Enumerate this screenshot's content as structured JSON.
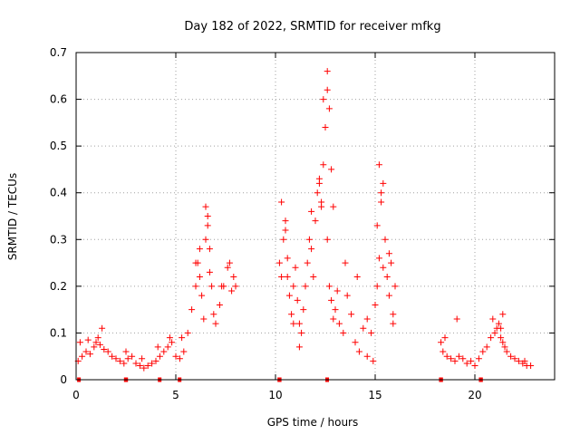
{
  "chart_data": {
    "type": "scatter",
    "title": "Day 182 of 2022, SRMTID for receiver mfkg",
    "xlabel": "GPS time / hours",
    "ylabel": "SRMTID / TECUs",
    "xlim": [
      0,
      24
    ],
    "ylim": [
      0,
      0.7
    ],
    "xticks": [
      0,
      5,
      10,
      15,
      20
    ],
    "xtick_labels": [
      "0",
      "5",
      "10",
      "15",
      "20"
    ],
    "yticks": [
      0,
      0.1,
      0.2,
      0.3,
      0.4,
      0.5,
      0.6,
      0.7
    ],
    "ytick_labels": [
      "0",
      "0.1",
      "0.2",
      "0.3",
      "0.4",
      "0.5",
      "0.6",
      "0.7"
    ],
    "grid": true,
    "marker": "+",
    "color": "#ff0000",
    "series": [
      {
        "name": "SRMTID",
        "x": [
          0.1,
          0.3,
          0.5,
          0.7,
          0.9,
          1.0,
          1.1,
          1.2,
          1.4,
          1.6,
          1.8,
          2.0,
          2.2,
          2.4,
          2.6,
          2.8,
          3.0,
          3.2,
          3.4,
          3.6,
          3.8,
          4.0,
          4.2,
          4.4,
          4.6,
          4.8,
          5.0,
          5.2,
          5.4,
          5.6,
          5.8,
          6.0,
          6.1,
          6.2,
          6.3,
          6.4,
          6.5,
          6.6,
          6.7,
          6.8,
          6.9,
          7.0,
          7.2,
          7.4,
          7.6,
          7.8,
          8.0,
          10.2,
          10.3,
          10.4,
          10.5,
          10.6,
          10.7,
          10.8,
          10.9,
          11.0,
          11.1,
          11.2,
          11.3,
          11.4,
          11.5,
          11.6,
          11.7,
          11.8,
          11.9,
          12.0,
          12.1,
          12.2,
          12.3,
          12.4,
          12.5,
          12.6,
          12.7,
          12.8,
          12.9,
          13.0,
          13.1,
          13.2,
          13.4,
          13.6,
          13.8,
          14.0,
          14.2,
          14.4,
          14.6,
          14.8,
          15.0,
          15.1,
          15.2,
          15.3,
          15.4,
          15.5,
          15.6,
          15.7,
          15.8,
          15.9,
          16.0,
          18.3,
          18.4,
          18.6,
          18.8,
          19.0,
          19.2,
          19.4,
          19.6,
          19.8,
          20.0,
          20.2,
          20.4,
          20.6,
          20.8,
          21.0,
          21.1,
          21.2,
          21.3,
          21.4,
          21.5,
          21.6,
          21.8,
          22.0,
          22.2,
          22.4,
          22.6,
          22.8,
          0.2,
          0.6,
          1.3,
          2.5,
          3.3,
          4.1,
          4.7,
          5.3,
          6.0,
          6.2,
          6.5,
          6.6,
          6.7,
          7.3,
          7.7,
          7.9,
          10.3,
          10.5,
          10.6,
          10.9,
          11.2,
          11.8,
          12.2,
          12.3,
          12.4,
          12.6,
          12.6,
          12.7,
          12.8,
          12.9,
          13.5,
          14.1,
          14.6,
          14.9,
          15.1,
          15.2,
          15.3,
          15.4,
          15.7,
          15.9,
          18.5,
          19.1,
          20.9,
          21.3,
          21.4,
          22.5
        ],
        "y": [
          0.04,
          0.05,
          0.06,
          0.055,
          0.07,
          0.08,
          0.09,
          0.075,
          0.065,
          0.06,
          0.05,
          0.045,
          0.04,
          0.035,
          0.045,
          0.05,
          0.035,
          0.03,
          0.025,
          0.03,
          0.035,
          0.04,
          0.05,
          0.06,
          0.07,
          0.08,
          0.05,
          0.045,
          0.06,
          0.1,
          0.15,
          0.2,
          0.25,
          0.22,
          0.18,
          0.13,
          0.3,
          0.35,
          0.28,
          0.2,
          0.14,
          0.12,
          0.16,
          0.2,
          0.24,
          0.19,
          0.2,
          0.25,
          0.22,
          0.3,
          0.34,
          0.26,
          0.18,
          0.14,
          0.2,
          0.24,
          0.17,
          0.12,
          0.1,
          0.15,
          0.2,
          0.25,
          0.3,
          0.28,
          0.22,
          0.34,
          0.4,
          0.43,
          0.38,
          0.46,
          0.54,
          0.3,
          0.2,
          0.17,
          0.13,
          0.15,
          0.19,
          0.12,
          0.1,
          0.18,
          0.14,
          0.08,
          0.06,
          0.11,
          0.13,
          0.1,
          0.16,
          0.2,
          0.26,
          0.38,
          0.42,
          0.3,
          0.22,
          0.18,
          0.25,
          0.14,
          0.2,
          0.08,
          0.06,
          0.05,
          0.045,
          0.04,
          0.05,
          0.045,
          0.035,
          0.04,
          0.03,
          0.045,
          0.06,
          0.07,
          0.09,
          0.1,
          0.11,
          0.12,
          0.09,
          0.08,
          0.07,
          0.06,
          0.05,
          0.045,
          0.04,
          0.035,
          0.03,
          0.03,
          0.08,
          0.085,
          0.11,
          0.06,
          0.045,
          0.07,
          0.09,
          0.09,
          0.25,
          0.28,
          0.37,
          0.33,
          0.23,
          0.2,
          0.25,
          0.22,
          0.38,
          0.32,
          0.22,
          0.12,
          0.07,
          0.36,
          0.42,
          0.37,
          0.6,
          0.66,
          0.62,
          0.58,
          0.45,
          0.37,
          0.25,
          0.22,
          0.05,
          0.04,
          0.33,
          0.46,
          0.4,
          0.24,
          0.27,
          0.12,
          0.09,
          0.13,
          0.13,
          0.11,
          0.14,
          0.04
        ],
        "label_segments_at_zero": [
          [
            0.05,
            0.12
          ],
          [
            2.4,
            2.6
          ],
          [
            4.1,
            4.2
          ],
          [
            5.1,
            5.2
          ],
          [
            10.1,
            10.3
          ],
          [
            12.5,
            12.6
          ],
          [
            18.2,
            18.4
          ],
          [
            20.2,
            20.4
          ]
        ]
      }
    ]
  }
}
